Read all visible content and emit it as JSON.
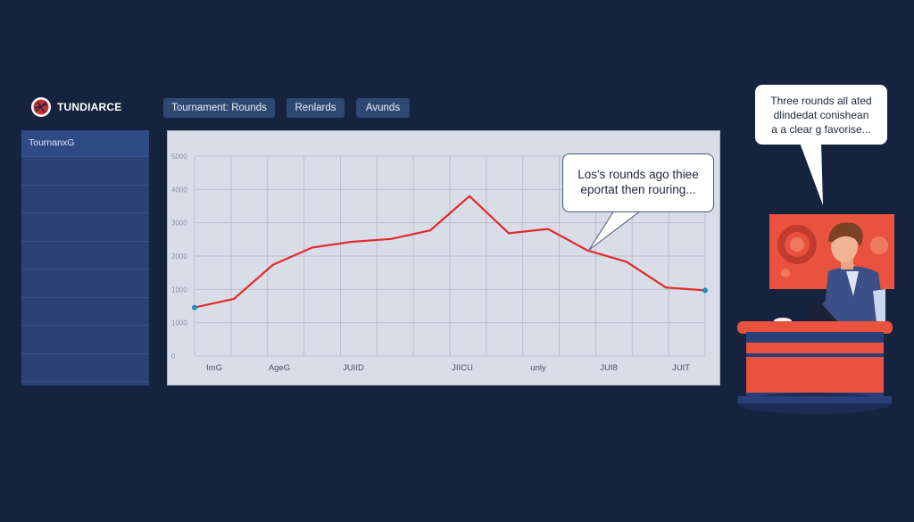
{
  "brand": {
    "name": "TUNDIARCE"
  },
  "tabs": [
    {
      "label": "Tournament: Rounds"
    },
    {
      "label": "Renlards"
    },
    {
      "label": "Avunds"
    }
  ],
  "sidebar": {
    "items": [
      {
        "label": "TournanxG"
      }
    ]
  },
  "callouts": {
    "chart": {
      "lines": [
        "Los's rounds ago thiee",
        "eportat then rouring..."
      ]
    },
    "host": {
      "lines": [
        "Three rounds all ated",
        "dlindedat conishean",
        "a a clear g favorise..."
      ]
    }
  },
  "colors": {
    "background": "#16233f",
    "line": "#e32b2b",
    "accent": "#2f4773"
  },
  "chart_data": {
    "type": "line",
    "categories": [
      "ImG",
      "AgeG",
      "JUIID",
      "JIICU",
      "unly",
      "JUI8",
      "JUIT"
    ],
    "yticks": [
      "0",
      "1000",
      "1000",
      "2000",
      "3000",
      "4000",
      "5000"
    ],
    "ylim": [
      0,
      7000
    ],
    "grid": true,
    "series": [
      {
        "x": [
          0,
          1,
          2,
          3,
          4,
          5,
          6,
          7,
          8,
          9,
          10,
          11,
          12,
          13
        ],
        "values": [
          1700,
          2000,
          3200,
          3800,
          4000,
          4100,
          4400,
          5600,
          4300,
          4450,
          3700,
          3300,
          2400,
          2300
        ]
      }
    ]
  }
}
